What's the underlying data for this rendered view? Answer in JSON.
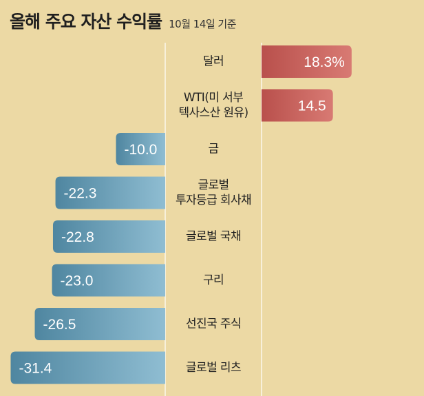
{
  "title": "올해 주요 자산 수익률",
  "subtitle": "10월 14일 기준",
  "chart_data": {
    "type": "bar",
    "orientation": "horizontal",
    "title": "올해 주요 자산 수익률",
    "subtitle": "10월 14일 기준",
    "categories": [
      [
        "달러"
      ],
      [
        "WTI(미 서부",
        "텍사스산 원유)"
      ],
      [
        "금"
      ],
      [
        "글로벌",
        "투자등급 회사채"
      ],
      [
        "글로벌 국채"
      ],
      [
        "구리"
      ],
      [
        "선진국 주식"
      ],
      [
        "글로벌 리츠"
      ]
    ],
    "values": [
      18.3,
      14.5,
      -10.0,
      -22.3,
      -22.8,
      -23.0,
      -26.5,
      -31.4
    ],
    "value_labels": [
      "18.3%",
      "14.5",
      "-10.0",
      "-22.3",
      "-22.8",
      "-23.0",
      "-26.5",
      "-31.4"
    ],
    "xlim": [
      -33,
      20
    ],
    "colors": {
      "positive": "#c9605b",
      "negative": "#4f86a0",
      "background": "#ecd9a4",
      "divider": "#ffffff"
    },
    "grid": false
  }
}
